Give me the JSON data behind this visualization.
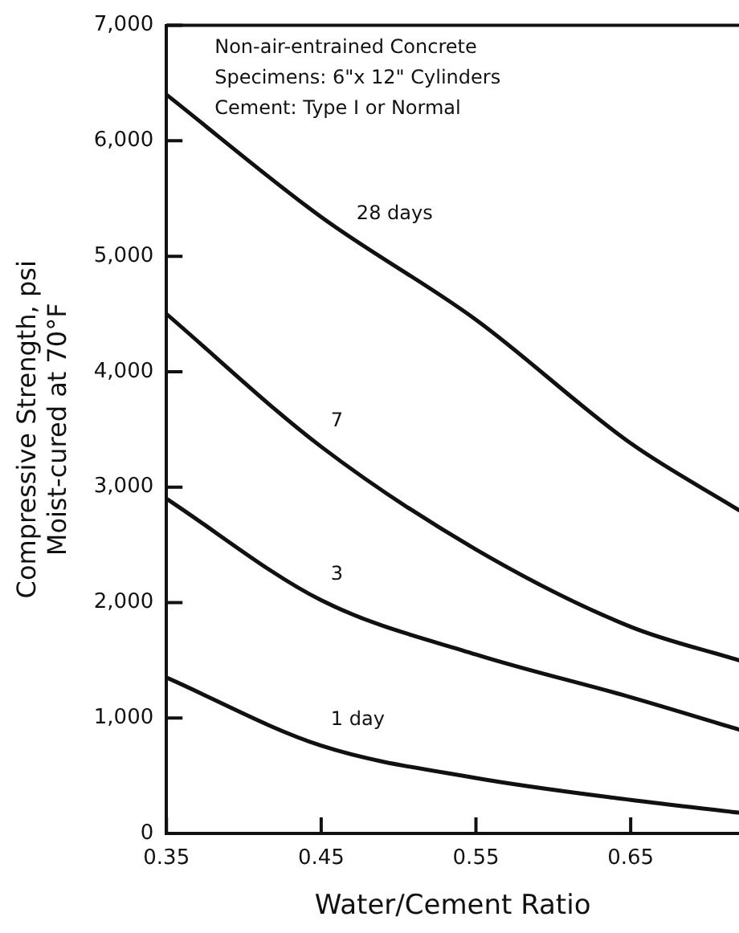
{
  "chart_data": {
    "type": "line",
    "xlabel": "Water/Cement Ratio",
    "ylabel": "Compressive Strength, psi\nMoist-cured at 70°F",
    "xlim": [
      0.35,
      0.72
    ],
    "xticks": [
      0.35,
      0.45,
      0.55,
      0.65
    ],
    "ylim": [
      0,
      7000
    ],
    "yticks": [
      {
        "value": 0,
        "label": "0"
      },
      {
        "value": 1000,
        "label": "1,000"
      },
      {
        "value": 2000,
        "label": "2,000"
      },
      {
        "value": 3000,
        "label": "3,000"
      },
      {
        "value": 4000,
        "label": "4,000"
      },
      {
        "value": 5000,
        "label": "5,000"
      },
      {
        "value": 6000,
        "label": "6,000"
      },
      {
        "value": 7000,
        "label": "7,000"
      }
    ],
    "x": [
      0.35,
      0.45,
      0.55,
      0.65,
      0.72
    ],
    "series": [
      {
        "name": "28 days",
        "color": "#111111",
        "values": [
          6400,
          5340,
          4450,
          3380,
          2800
        ]
      },
      {
        "name": "7",
        "color": "#111111",
        "values": [
          4500,
          3350,
          2460,
          1790,
          1500
        ]
      },
      {
        "name": "3",
        "color": "#111111",
        "values": [
          2900,
          2020,
          1550,
          1180,
          900
        ]
      },
      {
        "name": "1 day",
        "color": "#111111",
        "values": [
          1350,
          760,
          480,
          290,
          180
        ]
      }
    ],
    "annotations": [
      "Non-air-entrained Concrete",
      "Specimens: 6\"x 12\" Cylinders",
      "Cement: Type I or Normal"
    ],
    "legend": false,
    "grid": false,
    "marker": "none",
    "line_style": "solid"
  }
}
